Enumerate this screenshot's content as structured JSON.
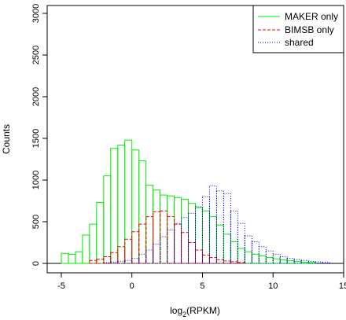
{
  "chart_data": {
    "type": "histogram",
    "xlabel": "log",
    "xlabel_sub": "2",
    "xlabel_rest": "(RPKM)",
    "ylabel": "Counts",
    "xlim": [
      -6,
      15
    ],
    "ylim": [
      0,
      3050
    ],
    "xticks": [
      -5,
      0,
      5,
      10,
      15
    ],
    "yticks": [
      0,
      500,
      1000,
      1500,
      2000,
      2500,
      3000
    ],
    "legend_position": "top-right",
    "grid": false,
    "bin_width": 0.5,
    "series": [
      {
        "name": "MAKER only",
        "color": "#00ee00",
        "dash": "solid",
        "x_start": -5.0,
        "values": [
          120,
          110,
          140,
          340,
          470,
          730,
          1050,
          1380,
          1420,
          1480,
          1360,
          1230,
          940,
          880,
          820,
          810,
          790,
          770,
          720,
          670,
          630,
          560,
          460,
          350,
          260,
          180,
          140,
          110,
          90,
          70,
          55,
          40,
          32,
          22,
          15,
          10
        ]
      },
      {
        "name": "BIMSB only",
        "color": "#ee0000",
        "dash": "dashed",
        "x_start": -3.0,
        "values": [
          35,
          50,
          80,
          130,
          200,
          290,
          380,
          470,
          560,
          620,
          630,
          560,
          470,
          370,
          250,
          160,
          100,
          70,
          45,
          30,
          20,
          12
        ]
      },
      {
        "name": "shared",
        "color": "#0000cc",
        "dash": "dotted",
        "x_start": -2.0,
        "values": [
          10,
          15,
          25,
          35,
          60,
          110,
          160,
          230,
          320,
          400,
          480,
          550,
          600,
          680,
          800,
          930,
          870,
          840,
          630,
          480,
          330,
          260,
          200,
          150,
          110,
          80,
          60,
          45,
          35,
          25,
          18,
          12
        ]
      }
    ]
  }
}
